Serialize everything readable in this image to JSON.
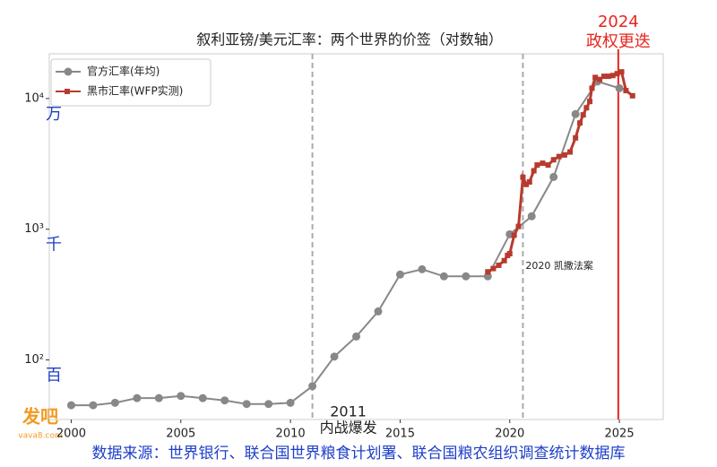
{
  "chart_data": {
    "type": "line",
    "title": "叙利亚镑/美元汇率：两个世界的价签（对数轴）",
    "log_scale": true,
    "grid": false,
    "legend": "upper left",
    "xlim": [
      1999,
      2027
    ],
    "xticks": [
      2000,
      2005,
      2010,
      2015,
      2020,
      2025
    ],
    "ylim": [
      35,
      22000
    ],
    "yticks": [
      {
        "value": 100,
        "label": "10²"
      },
      {
        "value": 1000,
        "label": "10³"
      },
      {
        "value": 10000,
        "label": "10⁴"
      }
    ],
    "ytick_notes": [
      "百",
      "千",
      "万"
    ],
    "series": [
      {
        "name": "官方汇率(年均)",
        "color": "#888888",
        "marker": "circle",
        "x": [
          2000,
          2001,
          2002,
          2003,
          2004,
          2005,
          2006,
          2007,
          2008,
          2009,
          2010,
          2011,
          2012,
          2013,
          2014,
          2015,
          2016,
          2017,
          2018,
          2019,
          2020,
          2021,
          2022,
          2023,
          2024,
          2025
        ],
        "values": [
          45,
          45,
          47,
          51,
          51,
          53,
          51,
          49,
          46,
          46,
          47,
          63,
          106,
          151,
          235,
          450,
          494,
          436,
          436,
          436,
          915,
          1256,
          2512,
          7600,
          13500,
          12000
        ]
      },
      {
        "name": "黑市汇率(WFP实测)",
        "color": "#b83a2e",
        "marker": "square",
        "x": [
          2019.0,
          2019.25,
          2019.5,
          2019.75,
          2019.9,
          2020.0,
          2020.2,
          2020.4,
          2020.6,
          2020.75,
          2020.9,
          2021.1,
          2021.25,
          2021.5,
          2021.75,
          2022.0,
          2022.25,
          2022.5,
          2022.75,
          2023.0,
          2023.2,
          2023.35,
          2023.5,
          2023.65,
          2023.75,
          2023.9,
          2024.1,
          2024.3,
          2024.5,
          2024.7,
          2024.9,
          2025.1,
          2025.3,
          2025.6
        ],
        "values": [
          472,
          500,
          530,
          575,
          630,
          650,
          900,
          1050,
          2500,
          2200,
          2300,
          2800,
          3100,
          3200,
          3100,
          3400,
          3600,
          3700,
          3900,
          5000,
          6500,
          7500,
          8500,
          9500,
          12000,
          14500,
          14000,
          14800,
          14800,
          15000,
          15500,
          16000,
          11500,
          10500
        ]
      }
    ],
    "annotations": [
      {
        "x": 2011,
        "text": [
          "2011",
          "内战爆发"
        ],
        "color": "#aaaaaa"
      },
      {
        "x": 2020.6,
        "text": [
          "2020 凯撒法案"
        ],
        "color": "#aaaaaa"
      },
      {
        "x": 2024.95,
        "text": [
          "2024",
          "政权更迭"
        ],
        "color": "#e8251f"
      }
    ],
    "source": "数据来源：世界银行、联合国世界粮食计划署、联合国粮农组织调查统计数据库",
    "watermark": [
      "发吧",
      "vava8.com"
    ]
  }
}
